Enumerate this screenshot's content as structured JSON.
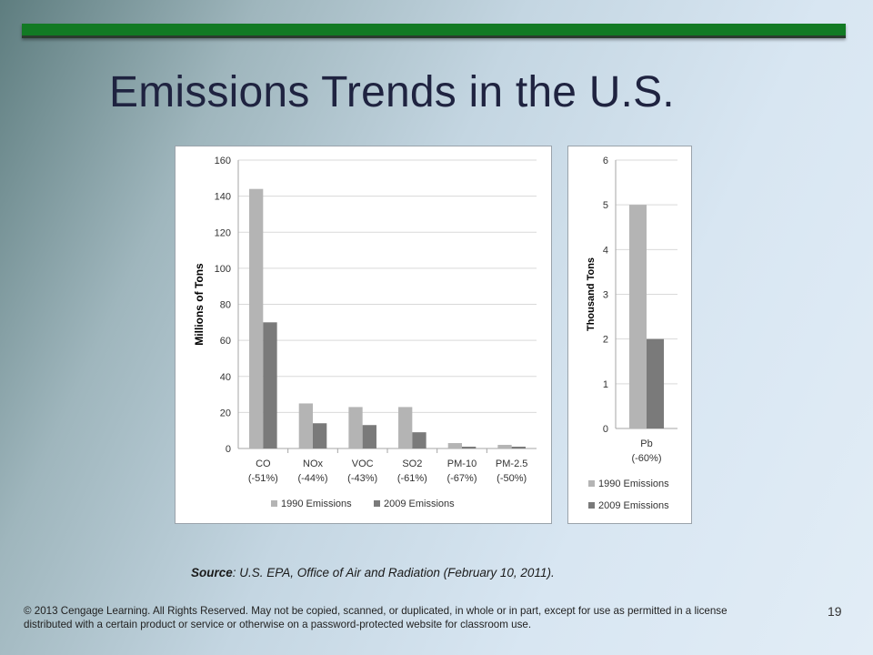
{
  "slide": {
    "title": "Emissions Trends in the U.S.",
    "source_label": "Source",
    "source_text": ": U.S. EPA, Office of Air and Radiation (February 10, 2011).",
    "copyright": "© 2013 Cengage Learning. All Rights Reserved. May not be copied, scanned, or duplicated, in whole or in part, except for use as permitted in a license distributed with a certain product or service or otherwise on a password-protected website for classroom use.",
    "page_number": "19"
  },
  "colors": {
    "accent_bar": "#127a24",
    "series_1990": "#b4b4b4",
    "series_2009": "#7a7a7a",
    "grid": "#d9d9d9"
  },
  "chart_data": [
    {
      "type": "bar",
      "ylabel": "Millions of Tons",
      "ylim": [
        0,
        160
      ],
      "yticks": [
        0,
        20,
        40,
        60,
        80,
        100,
        120,
        140,
        160
      ],
      "grid": true,
      "legend": "bottom",
      "categories": [
        "CO",
        "NOx",
        "VOC",
        "SO2",
        "PM-10",
        "PM-2.5"
      ],
      "category_sublabels": [
        "(-51%)",
        "(-44%)",
        "(-43%)",
        "(-61%)",
        "(-67%)",
        "(-50%)"
      ],
      "series": [
        {
          "name": "1990 Emissions",
          "values": [
            144,
            25,
            23,
            23,
            3,
            2
          ]
        },
        {
          "name": "2009 Emissions",
          "values": [
            70,
            14,
            13,
            9,
            1,
            1
          ]
        }
      ]
    },
    {
      "type": "bar",
      "ylabel": "Thousand Tons",
      "ylim": [
        0,
        6
      ],
      "yticks": [
        0,
        1,
        2,
        3,
        4,
        5,
        6
      ],
      "grid": true,
      "legend": "bottom",
      "categories": [
        "Pb"
      ],
      "category_sublabels": [
        "(-60%)"
      ],
      "series": [
        {
          "name": "1990 Emissions",
          "values": [
            5
          ]
        },
        {
          "name": "2009 Emissions",
          "values": [
            2
          ]
        }
      ]
    }
  ]
}
